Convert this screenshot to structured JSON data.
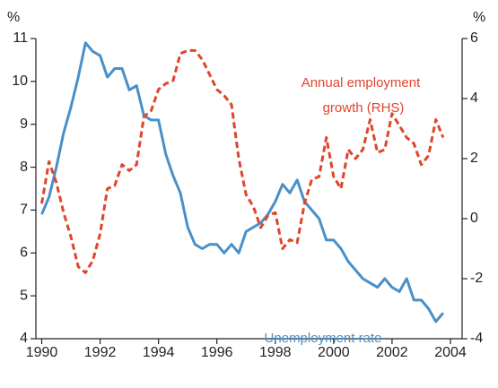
{
  "chart_data": {
    "type": "line",
    "y_unit": "%",
    "y2_unit": "%",
    "x": [
      1990,
      1990.25,
      1990.5,
      1990.75,
      1991,
      1991.25,
      1991.5,
      1991.75,
      1992,
      1992.25,
      1992.5,
      1992.75,
      1993,
      1993.25,
      1993.5,
      1993.75,
      1994,
      1994.25,
      1994.5,
      1994.75,
      1995,
      1995.25,
      1995.5,
      1995.75,
      1996,
      1996.25,
      1996.5,
      1996.75,
      1997,
      1997.25,
      1997.5,
      1997.75,
      1998,
      1998.25,
      1998.5,
      1998.75,
      1999,
      1999.25,
      1999.5,
      1999.75,
      2000,
      2000.25,
      2000.5,
      2000.75,
      2001,
      2001.25,
      2001.5,
      2001.75,
      2002,
      2002.25,
      2002.5,
      2002.75,
      2003,
      2003.25,
      2003.5,
      2003.75
    ],
    "series": [
      {
        "name": "Unemployment rate",
        "color": "#4a90c8",
        "dashed": false,
        "values": [
          6.9,
          7.3,
          8.0,
          8.8,
          9.4,
          10.1,
          10.9,
          10.7,
          10.6,
          10.1,
          10.3,
          10.3,
          9.8,
          9.9,
          9.2,
          9.1,
          9.1,
          8.3,
          7.8,
          7.4,
          6.6,
          6.2,
          6.1,
          6.2,
          6.2,
          6.0,
          6.2,
          6.0,
          6.5,
          6.6,
          6.7,
          6.9,
          7.2,
          7.6,
          7.4,
          7.7,
          7.2,
          7.0,
          6.8,
          6.3,
          6.3,
          6.1,
          5.8,
          5.6,
          5.4,
          5.3,
          5.2,
          5.4,
          5.2,
          5.1,
          5.4,
          4.9,
          4.9,
          4.7,
          4.4,
          4.6
        ]
      },
      {
        "name": "Annual employment growth (RHS)",
        "color": "#e0452c",
        "dashed": true,
        "axis": "y2",
        "values": [
          0.5,
          1.9,
          1.2,
          0.2,
          -0.6,
          -1.6,
          -1.8,
          -1.4,
          -0.5,
          1.0,
          1.1,
          1.8,
          1.6,
          1.8,
          3.4,
          3.6,
          4.3,
          4.5,
          4.6,
          5.5,
          5.6,
          5.6,
          5.3,
          4.8,
          4.3,
          4.1,
          3.8,
          2.0,
          0.8,
          0.4,
          -0.3,
          0.1,
          0.2,
          -1.0,
          -0.7,
          -0.8,
          0.5,
          1.3,
          1.4,
          2.7,
          1.4,
          1.0,
          2.3,
          2.0,
          2.3,
          3.3,
          2.2,
          2.3,
          3.5,
          3.1,
          2.7,
          2.5,
          1.8,
          2.1,
          3.3,
          2.7
        ]
      }
    ],
    "annotations": [
      {
        "lines": [
          "Annual employment",
          "growth (RHS)"
        ],
        "series": 1
      },
      {
        "lines": [
          "Unemployment rate"
        ],
        "series": 0
      }
    ],
    "xlim": [
      1989.8,
      2004.4
    ],
    "xticks": [
      1990,
      1992,
      1994,
      1996,
      1998,
      2000,
      2002,
      2004
    ],
    "ylim": [
      4,
      11
    ],
    "yticks": [
      4,
      5,
      6,
      7,
      8,
      9,
      10,
      11
    ],
    "y2lim": [
      -4,
      6
    ],
    "y2ticks": [
      -4,
      -2,
      0,
      2,
      4,
      6
    ]
  }
}
